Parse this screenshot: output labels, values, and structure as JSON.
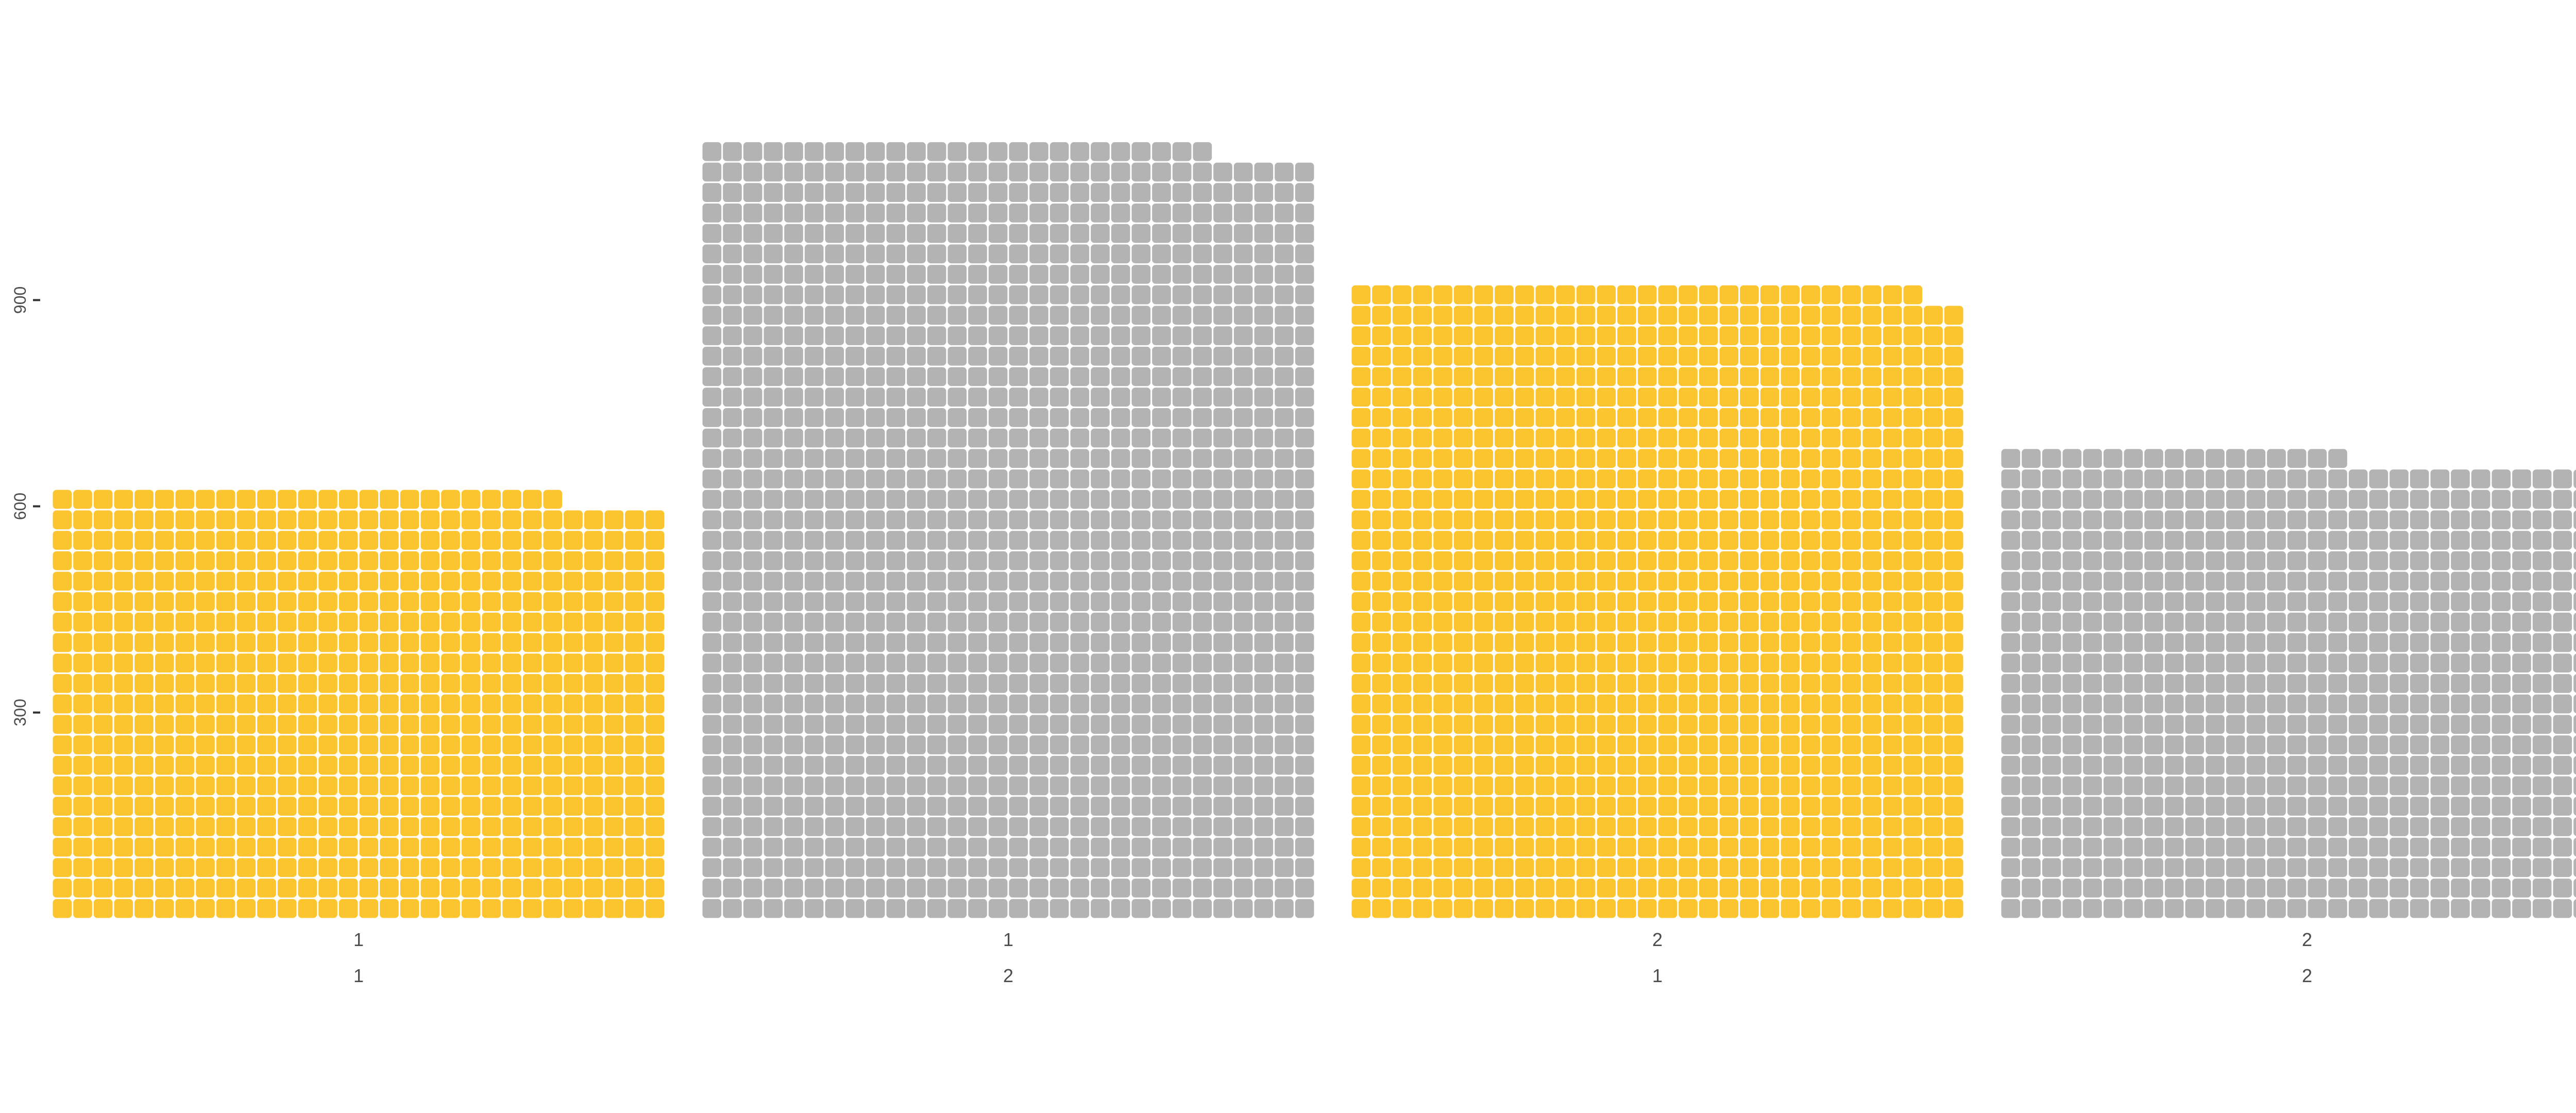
{
  "chart_data": {
    "type": "waffle",
    "columns_per_panel": 30,
    "units_per_square": 1,
    "ylim": [
      0,
      1200
    ],
    "y_ticks": [
      300,
      600,
      900
    ],
    "y_tick_labels": [
      "300",
      "600",
      "900"
    ],
    "grid": false,
    "legend": "none",
    "panels": [
      {
        "label_top": "1",
        "label_bottom": "1",
        "value": 625,
        "color": "#FBC52F"
      },
      {
        "label_top": "1",
        "label_bottom": "2",
        "value": 1135,
        "color": "#B3B3B3"
      },
      {
        "label_top": "2",
        "label_bottom": "1",
        "value": 928,
        "color": "#FBC52F"
      },
      {
        "label_top": "2",
        "label_bottom": "2",
        "value": 677,
        "color": "#B3B3B3"
      }
    ]
  }
}
